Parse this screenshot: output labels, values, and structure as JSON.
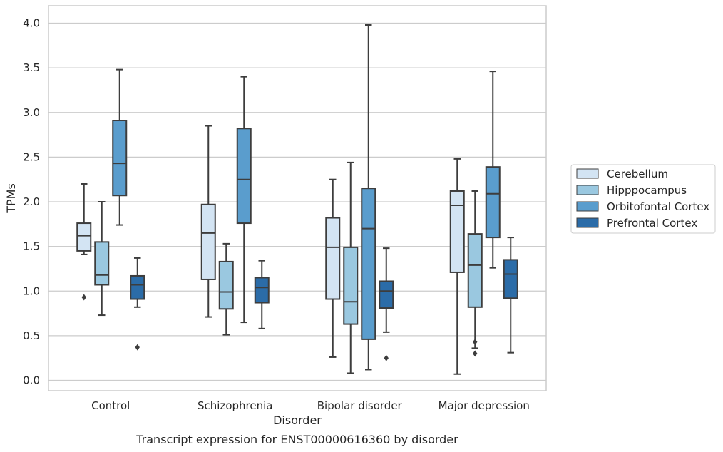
{
  "chart_data": {
    "type": "box",
    "caption": "Transcript expression for ENST00000616360 by disorder",
    "xlabel": "Disorder",
    "ylabel": "TPMs",
    "ylim": [
      0.0,
      4.0
    ],
    "yticks": [
      "0.0",
      "0.5",
      "1.0",
      "1.5",
      "2.0",
      "2.5",
      "3.0",
      "3.5",
      "4.0"
    ],
    "grid": "horizontal",
    "legend_position": "right",
    "categories": [
      "Control",
      "Schizophrenia",
      "Bipolar disorder",
      "Major depression"
    ],
    "series": [
      {
        "name": "Cerebellum",
        "color": "#d3e4f3",
        "boxes": [
          {
            "whisker_low": 1.41,
            "q1": 1.45,
            "median": 1.62,
            "q3": 1.76,
            "whisker_high": 2.2,
            "outliers": [
              0.93
            ]
          },
          {
            "whisker_low": 0.71,
            "q1": 1.13,
            "median": 1.65,
            "q3": 1.97,
            "whisker_high": 2.85,
            "outliers": []
          },
          {
            "whisker_low": 0.26,
            "q1": 0.91,
            "median": 1.49,
            "q3": 1.82,
            "whisker_high": 2.25,
            "outliers": []
          },
          {
            "whisker_low": 0.07,
            "q1": 1.21,
            "median": 1.96,
            "q3": 2.12,
            "whisker_high": 2.48,
            "outliers": []
          }
        ]
      },
      {
        "name": "Hipppocampus",
        "color": "#9ac8e0",
        "boxes": [
          {
            "whisker_low": 0.73,
            "q1": 1.07,
            "median": 1.18,
            "q3": 1.55,
            "whisker_high": 2.0,
            "outliers": []
          },
          {
            "whisker_low": 0.51,
            "q1": 0.8,
            "median": 0.99,
            "q3": 1.33,
            "whisker_high": 1.53,
            "outliers": []
          },
          {
            "whisker_low": 0.08,
            "q1": 0.63,
            "median": 0.88,
            "q3": 1.49,
            "whisker_high": 2.44,
            "outliers": []
          },
          {
            "whisker_low": 0.36,
            "q1": 0.82,
            "median": 1.29,
            "q3": 1.64,
            "whisker_high": 2.12,
            "outliers": [
              0.43,
              0.3
            ]
          }
        ]
      },
      {
        "name": "Orbitofontal Cortex",
        "color": "#5a9dcd",
        "boxes": [
          {
            "whisker_low": 1.74,
            "q1": 2.07,
            "median": 2.43,
            "q3": 2.91,
            "whisker_high": 3.48,
            "outliers": []
          },
          {
            "whisker_low": 0.65,
            "q1": 1.76,
            "median": 2.25,
            "q3": 2.82,
            "whisker_high": 3.4,
            "outliers": []
          },
          {
            "whisker_low": 0.12,
            "q1": 0.46,
            "median": 1.7,
            "q3": 2.15,
            "whisker_high": 3.98,
            "outliers": []
          },
          {
            "whisker_low": 1.26,
            "q1": 1.6,
            "median": 2.09,
            "q3": 2.39,
            "whisker_high": 3.46,
            "outliers": []
          }
        ]
      },
      {
        "name": "Prefrontal Cortex",
        "color": "#2b6ca8",
        "boxes": [
          {
            "whisker_low": 0.82,
            "q1": 0.91,
            "median": 1.07,
            "q3": 1.17,
            "whisker_high": 1.37,
            "outliers": [
              0.37
            ]
          },
          {
            "whisker_low": 0.58,
            "q1": 0.87,
            "median": 1.04,
            "q3": 1.15,
            "whisker_high": 1.34,
            "outliers": []
          },
          {
            "whisker_low": 0.54,
            "q1": 0.81,
            "median": 1.0,
            "q3": 1.11,
            "whisker_high": 1.48,
            "outliers": [
              0.25
            ]
          },
          {
            "whisker_low": 0.31,
            "q1": 0.92,
            "median": 1.19,
            "q3": 1.35,
            "whisker_high": 1.6,
            "outliers": []
          }
        ]
      }
    ]
  }
}
